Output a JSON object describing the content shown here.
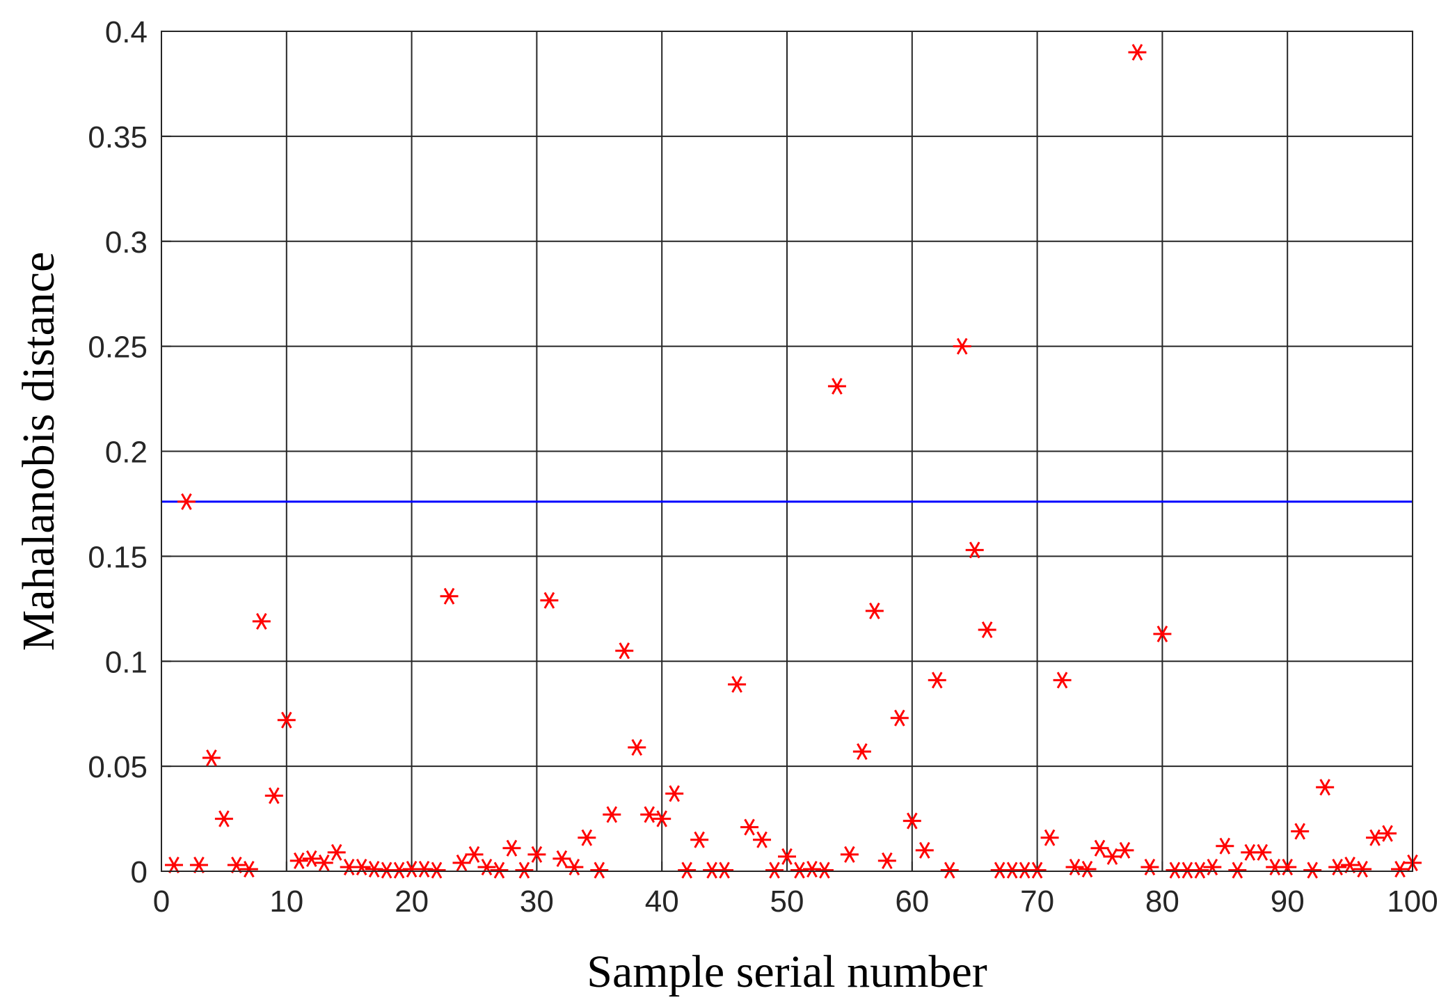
{
  "colors": {
    "marker": "#ff0000",
    "threshold": "#0000ff",
    "grid": "#262626",
    "background": "#ffffff"
  },
  "chart_data": {
    "type": "scatter",
    "title": "",
    "xlabel": "Sample serial number",
    "ylabel": "Mahalanobis distance",
    "xlim": [
      0,
      100
    ],
    "ylim": [
      0,
      0.4
    ],
    "xticks": [
      0,
      10,
      20,
      30,
      40,
      50,
      60,
      70,
      80,
      90,
      100
    ],
    "yticks": [
      0,
      0.05,
      0.1,
      0.15,
      0.2,
      0.25,
      0.3,
      0.35,
      0.4
    ],
    "xtick_labels": [
      "0",
      "10",
      "20",
      "30",
      "40",
      "50",
      "60",
      "70",
      "80",
      "90",
      "100"
    ],
    "ytick_labels": [
      "0",
      "0.05",
      "0.1",
      "0.15",
      "0.2",
      "0.25",
      "0.3",
      "0.35",
      "0.4"
    ],
    "grid": true,
    "marker": "asterisk",
    "threshold": 0.176,
    "series": [
      {
        "x": [
          1,
          2,
          3,
          4,
          5,
          6,
          7,
          8,
          9,
          10,
          11,
          12,
          13,
          14,
          15,
          16,
          17,
          18,
          19,
          20,
          21,
          22,
          23,
          24,
          25,
          26,
          27,
          28,
          29,
          30,
          31,
          32,
          33,
          34,
          35,
          36,
          37,
          38,
          39,
          40,
          41,
          42,
          43,
          44,
          45,
          46,
          47,
          48,
          49,
          50,
          51,
          52,
          53,
          54,
          55,
          56,
          57,
          58,
          59,
          60,
          61,
          62,
          63,
          64,
          65,
          66,
          67,
          68,
          69,
          70,
          71,
          72,
          73,
          74,
          75,
          76,
          77,
          78,
          79,
          80,
          81,
          82,
          83,
          84,
          85,
          86,
          87,
          88,
          89,
          90,
          91,
          92,
          93,
          94,
          95,
          96,
          97,
          98,
          99,
          100
        ],
        "y": [
          0.003,
          0.176,
          0.003,
          0.054,
          0.025,
          0.003,
          0.001,
          0.119,
          0.036,
          0.072,
          0.005,
          0.006,
          0.004,
          0.009,
          0.002,
          0.002,
          0.001,
          0.0005,
          0.0005,
          0.001,
          0.001,
          0.0005,
          0.131,
          0.004,
          0.008,
          0.002,
          0.0005,
          0.011,
          0.0005,
          0.008,
          0.129,
          0.006,
          0.002,
          0.016,
          0.0005,
          0.027,
          0.105,
          0.059,
          0.027,
          0.025,
          0.037,
          0.0005,
          0.015,
          0.0005,
          0.0005,
          0.089,
          0.021,
          0.015,
          0.0005,
          0.007,
          0.0005,
          0.001,
          0.0005,
          0.231,
          0.008,
          0.057,
          0.124,
          0.005,
          0.073,
          0.024,
          0.01,
          0.091,
          0.0005,
          0.25,
          0.153,
          0.115,
          0.0005,
          0.0005,
          0.0005,
          0.0005,
          0.016,
          0.091,
          0.002,
          0.001,
          0.011,
          0.007,
          0.01,
          0.39,
          0.002,
          0.113,
          0.0005,
          0.0005,
          0.0005,
          0.002,
          0.012,
          0.0005,
          0.009,
          0.009,
          0.002,
          0.002,
          0.019,
          0.0005,
          0.04,
          0.002,
          0.003,
          0.001,
          0.016,
          0.018,
          0.001,
          0.004
        ]
      }
    ]
  }
}
